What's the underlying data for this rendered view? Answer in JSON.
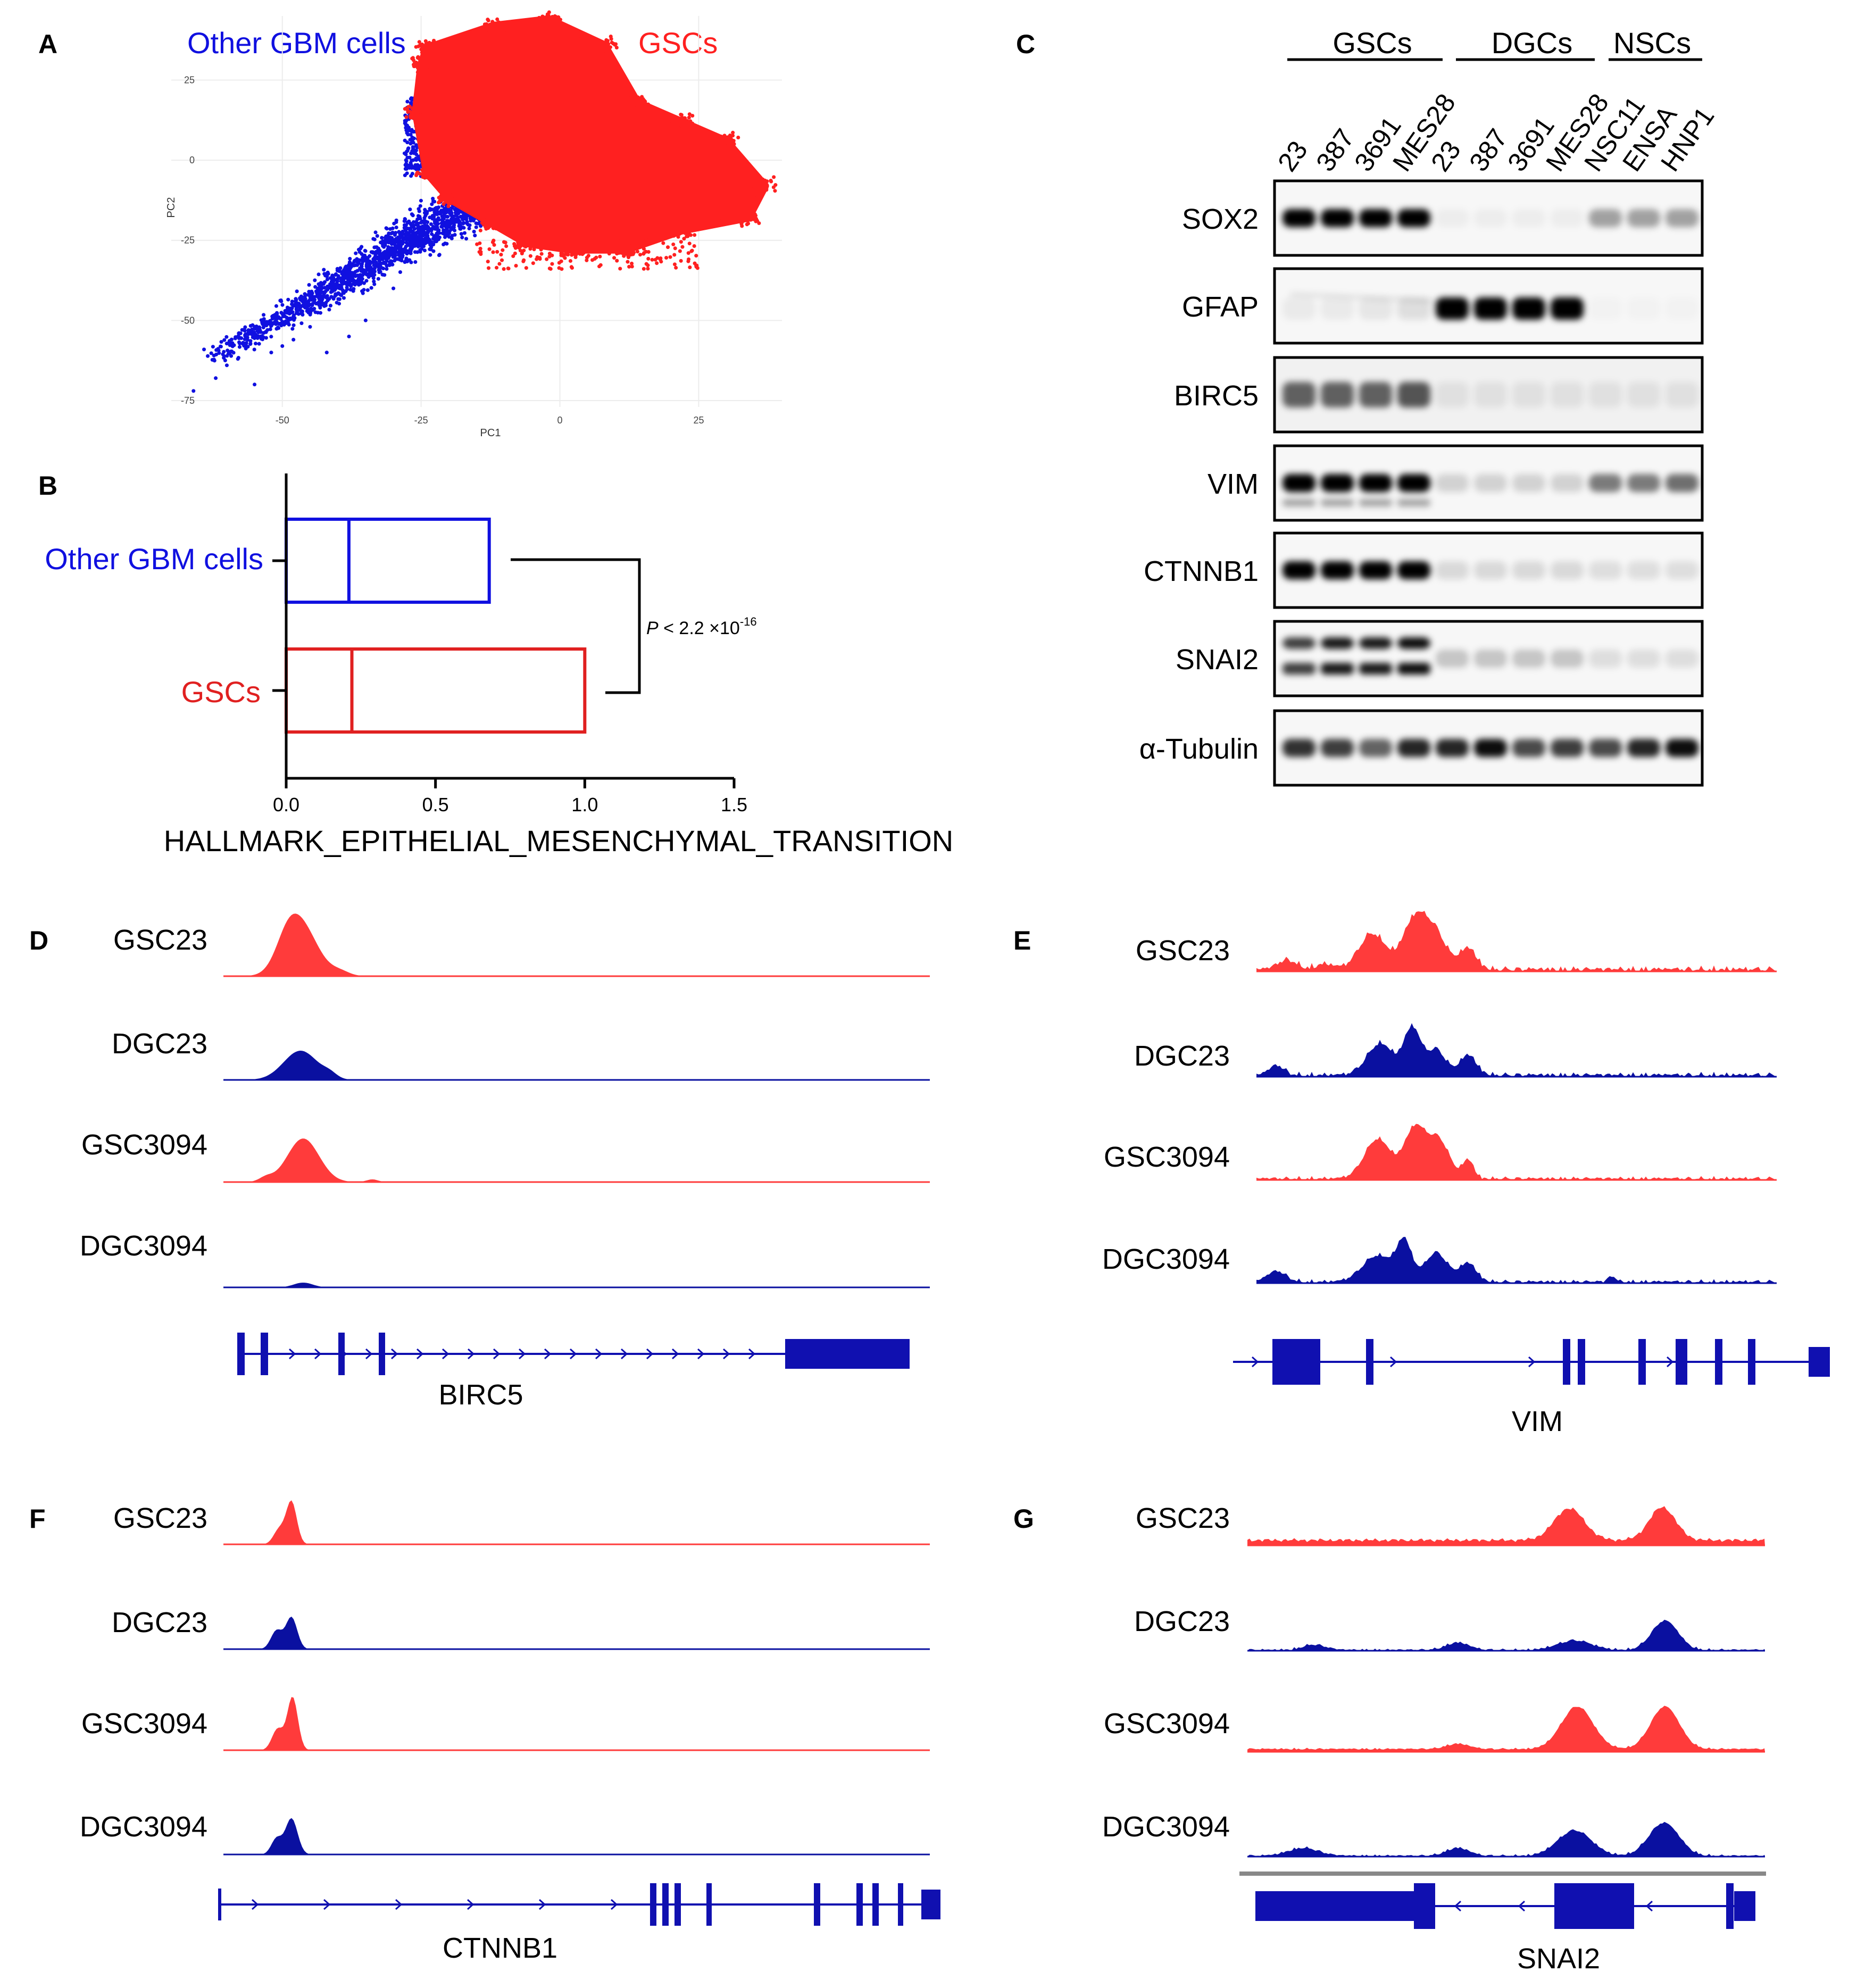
{
  "colors": {
    "gsc": "#ff2020",
    "other": "#1010e0",
    "track_red": "#ff3b3b",
    "track_blue": "#0a10a0",
    "gene": "#1010b0"
  },
  "panelA": {
    "label": "A",
    "legend_other": "Other GBM cells",
    "legend_gsc": "GSCs",
    "chart_data": {
      "type": "scatter",
      "xlabel": "PC1",
      "ylabel": "PC2",
      "xlim": [
        -70,
        40
      ],
      "ylim": [
        -77,
        45
      ],
      "xticks": [
        -50,
        -25,
        0,
        25
      ],
      "yticks": [
        25,
        0,
        -25,
        -50,
        -75
      ],
      "series": [
        {
          "name": "Other GBM cells",
          "color": "#1010e0",
          "region": "PC1 -67 to -5, PC2 -75 to 20"
        },
        {
          "name": "GSCs",
          "color": "#ff2020",
          "region": "PC1 -25 to 38, PC2 -32 to 43"
        }
      ]
    }
  },
  "panelB": {
    "label": "B",
    "chart_data": {
      "type": "box",
      "title": "",
      "xlabel": "HALLMARK_EPITHELIAL_MESENCHYMAL_TRANSITION",
      "xlim": [
        0,
        1.5
      ],
      "xticks": [
        "0.0",
        "0.5",
        "1.0",
        "1.5"
      ],
      "categories": [
        "Other GBM cells",
        "GSCs"
      ],
      "series": [
        {
          "name": "Other GBM cells",
          "q1": 0.0,
          "median": 0.21,
          "q3": 0.68,
          "color": "#1010e0"
        },
        {
          "name": "GSCs",
          "q1": 0.0,
          "median": 0.22,
          "q3": 1.0,
          "color": "#e02020"
        }
      ],
      "annotation": {
        "p_prefix": "P",
        "p_text": " < 2.2 ×10",
        "p_exp": "-16"
      }
    }
  },
  "panelC": {
    "label": "C",
    "groups": [
      "GSCs",
      "DGCs",
      "NSCs"
    ],
    "lanes": [
      "23",
      "387",
      "3691",
      "MES28",
      "23",
      "387",
      "3691",
      "MES28",
      "NSC11",
      "ENSA",
      "HNP1"
    ],
    "blots": [
      "SOX2",
      "GFAP",
      "BIRC5",
      "VIM",
      "CTNNB1",
      "SNAI2",
      "α-Tubulin"
    ]
  },
  "panelD": {
    "label": "D",
    "tracks": [
      "GSC23",
      "DGC23",
      "GSC3094",
      "DGC3094"
    ],
    "gene": "BIRC5"
  },
  "panelE": {
    "label": "E",
    "tracks": [
      "GSC23",
      "DGC23",
      "GSC3094",
      "DGC3094"
    ],
    "gene": "VIM"
  },
  "panelF": {
    "label": "F",
    "tracks": [
      "GSC23",
      "DGC23",
      "GSC3094",
      "DGC3094"
    ],
    "gene": "CTNNB1"
  },
  "panelG": {
    "label": "G",
    "tracks": [
      "GSC23",
      "DGC23",
      "GSC3094",
      "DGC3094"
    ],
    "gene": "SNAI2"
  }
}
